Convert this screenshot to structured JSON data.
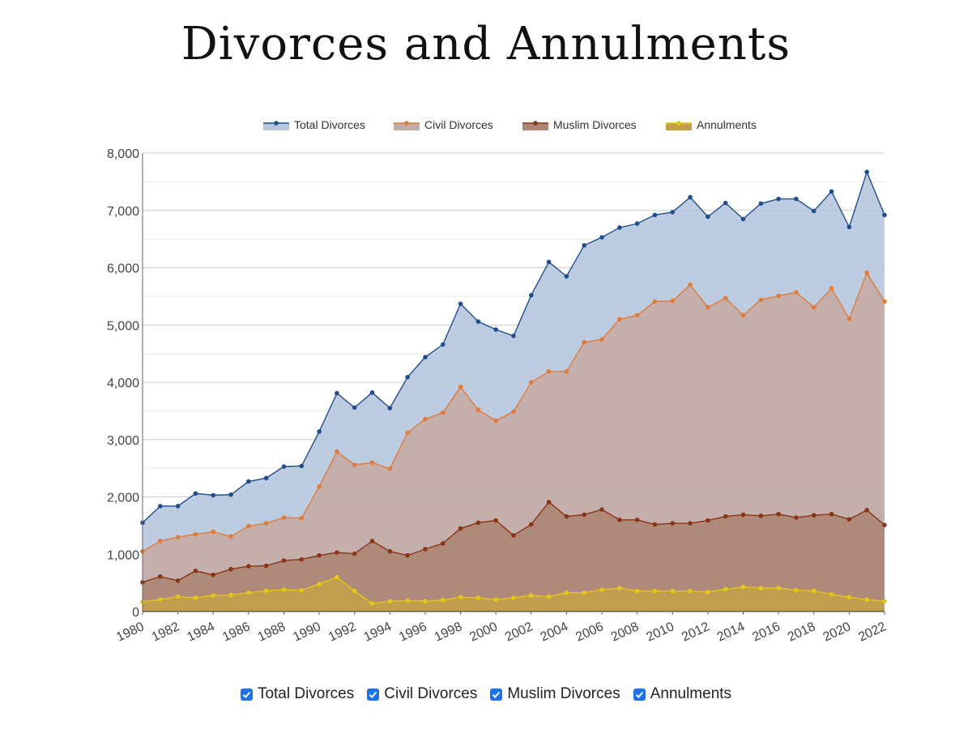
{
  "chart_data": {
    "type": "area",
    "title": "Divorces and Annulments",
    "xlabel": "",
    "ylabel": "",
    "ylim": [
      0,
      8000
    ],
    "yticks": [
      0,
      1000,
      2000,
      3000,
      4000,
      5000,
      6000,
      7000,
      8000
    ],
    "ytick_labels": [
      "0",
      "1,000",
      "2,000",
      "3,000",
      "4,000",
      "5,000",
      "6,000",
      "7,000",
      "8,000"
    ],
    "xtick_labels": [
      "1980",
      "1982",
      "1984",
      "1986",
      "1988",
      "1990",
      "1992",
      "1994",
      "1996",
      "1998",
      "2000",
      "2002",
      "2004",
      "2006",
      "2008",
      "2010",
      "2012",
      "2014",
      "2016",
      "2018",
      "2020",
      "2022"
    ],
    "legend_position": "top",
    "grid": true,
    "x": [
      1980,
      1981,
      1982,
      1983,
      1984,
      1985,
      1986,
      1987,
      1988,
      1989,
      1990,
      1991,
      1992,
      1993,
      1994,
      1995,
      1996,
      1997,
      1998,
      1999,
      2000,
      2001,
      2002,
      2003,
      2004,
      2005,
      2006,
      2007,
      2008,
      2009,
      2010,
      2011,
      2012,
      2013,
      2014,
      2015,
      2016,
      2017,
      2018,
      2019,
      2020,
      2021,
      2022
    ],
    "series": [
      {
        "name": "Total Divorces",
        "color": "#1f4e8c",
        "fill": "#b7c7de",
        "values": [
          1550,
          1840,
          1840,
          2060,
          2030,
          2040,
          2270,
          2330,
          2530,
          2540,
          3140,
          3810,
          3560,
          3820,
          3550,
          4090,
          4440,
          4660,
          5370,
          5060,
          4920,
          4810,
          5520,
          6100,
          5850,
          6390,
          6530,
          6700,
          6770,
          6920,
          6970,
          7230,
          6890,
          7130,
          6850,
          7120,
          7200,
          7200,
          6990,
          7330,
          6710,
          7670,
          6920
        ]
      },
      {
        "name": "Civil Divorces",
        "color": "#e07b39",
        "fill": "#c4aca6",
        "values": [
          1050,
          1230,
          1300,
          1350,
          1390,
          1310,
          1490,
          1540,
          1640,
          1630,
          2180,
          2790,
          2560,
          2600,
          2490,
          3120,
          3360,
          3470,
          3920,
          3520,
          3330,
          3490,
          4000,
          4190,
          4190,
          4700,
          4750,
          5100,
          5170,
          5410,
          5420,
          5700,
          5310,
          5470,
          5170,
          5440,
          5510,
          5570,
          5310,
          5640,
          5110,
          5910,
          5410
        ]
      },
      {
        "name": "Muslim Divorces",
        "color": "#8a3515",
        "fill": "#ad8573",
        "values": [
          510,
          610,
          540,
          710,
          640,
          740,
          790,
          800,
          890,
          910,
          980,
          1030,
          1010,
          1230,
          1050,
          980,
          1090,
          1190,
          1450,
          1550,
          1590,
          1330,
          1520,
          1910,
          1660,
          1690,
          1780,
          1600,
          1600,
          1520,
          1540,
          1540,
          1590,
          1660,
          1690,
          1670,
          1700,
          1640,
          1680,
          1700,
          1610,
          1770,
          1510
        ]
      },
      {
        "name": "Annulments",
        "color": "#e6c619",
        "fill": "#c2a04a",
        "values": [
          170,
          210,
          260,
          240,
          280,
          290,
          330,
          360,
          380,
          370,
          480,
          600,
          360,
          140,
          180,
          190,
          180,
          200,
          250,
          240,
          210,
          240,
          280,
          260,
          330,
          330,
          380,
          410,
          360,
          360,
          360,
          360,
          340,
          390,
          430,
          410,
          410,
          370,
          360,
          300,
          250,
          210,
          180
        ]
      }
    ]
  },
  "toggles": [
    {
      "label": "Total Divorces",
      "checked": true
    },
    {
      "label": "Civil Divorces",
      "checked": true
    },
    {
      "label": "Muslim Divorces",
      "checked": true
    },
    {
      "label": "Annulments",
      "checked": true
    }
  ]
}
